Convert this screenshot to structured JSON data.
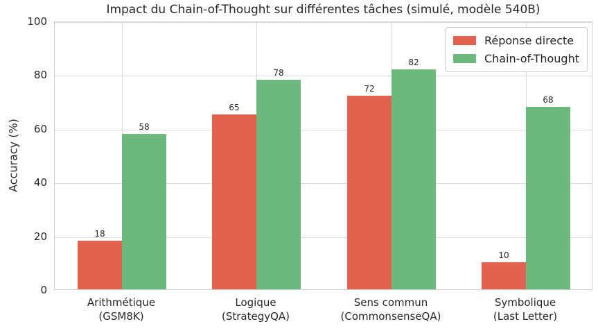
{
  "chart_data": {
    "type": "bar",
    "title": "Impact du Chain-of-Thought sur différentes tâches (simulé, modèle 540B)",
    "ylabel": "Accuracy (%)",
    "xlabel": "",
    "ylim": [
      0,
      100
    ],
    "yticks": [
      0,
      20,
      40,
      60,
      80,
      100
    ],
    "grid": true,
    "grid_color": "#d9d9d9",
    "axis_color": "#cbcbcb",
    "text_color": "#262626",
    "legend_position": "upper right",
    "categories": [
      "Arithmétique\n(GSM8K)",
      "Logique\n(StrategyQA)",
      "Sens commun\n(CommonsenseQA)",
      "Symbolique\n(Last Letter)"
    ],
    "series": [
      {
        "name": "Réponse directe",
        "color": "#e2614f",
        "values": [
          18,
          65,
          72,
          10
        ]
      },
      {
        "name": "Chain-of-Thought",
        "color": "#6db87c",
        "values": [
          58,
          78,
          82,
          68
        ]
      }
    ]
  }
}
